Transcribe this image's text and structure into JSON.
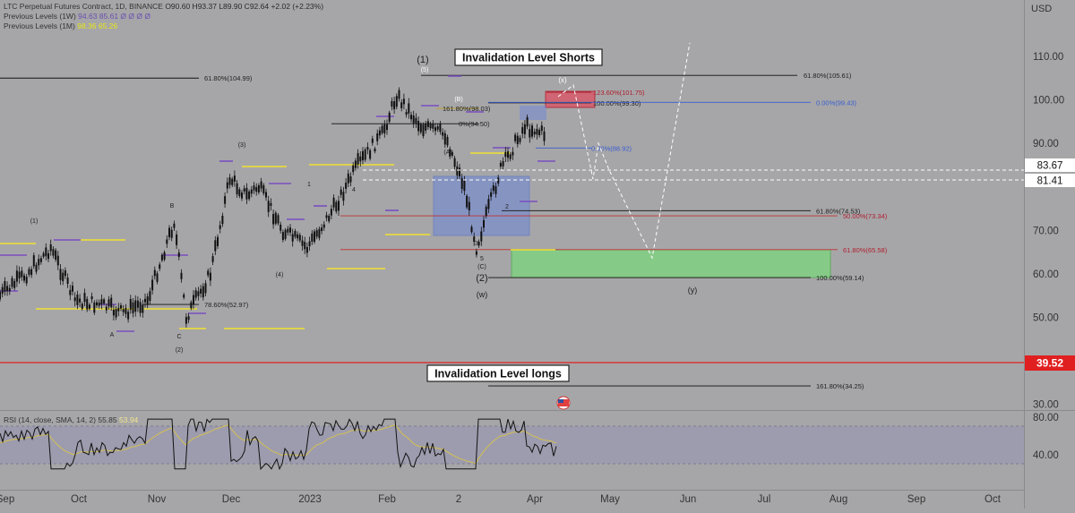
{
  "header": {
    "symbol": "LTC Perpetual Futures Contract, 1D, BINANCE",
    "ohlc": "O90.60 H93.37 L89.90 C92.64 +2.02 (+2.23%)",
    "prev_1w_label": "Previous Levels (1W)",
    "prev_1w_values": "94.63 85.61 Ø Ø Ø Ø",
    "prev_1m_label": "Previous Levels (1M)",
    "prev_1m_values": "98.36 65.26",
    "currency": "USD"
  },
  "annotations": {
    "shorts_box": "Invalidation Level Shorts",
    "longs_box": "Invalidation Level longs"
  },
  "price_axis": {
    "ticks": [
      "110.00",
      "100.00",
      "90.00",
      "70.00",
      "60.00",
      "50.00",
      "30.00"
    ],
    "marker_83": "83.67",
    "marker_81": "81.41",
    "marker_39": "39.52"
  },
  "rsi": {
    "legend_label": "RSI (14, close, SMA, 14, 2)",
    "legend_value": "55.85",
    "legend_sma": "53.94",
    "ticks": [
      "80.00",
      "40.00"
    ]
  },
  "time_axis": {
    "labels": [
      "Sep",
      "Oct",
      "Nov",
      "Dec",
      "2023",
      "Feb",
      "2",
      "Apr",
      "May",
      "Jun",
      "Jul",
      "Aug",
      "Sep",
      "Oct"
    ]
  },
  "chart_data": {
    "type": "line",
    "y_axis_range": [
      26,
      118
    ],
    "fib_levels": [
      {
        "label": "61.80%(104.99)",
        "price": 104.99
      },
      {
        "label": "61.80%(105.61)",
        "price": 105.61
      },
      {
        "label": "123.60%(101.75)",
        "price": 101.75
      },
      {
        "label": "100.00%(99.30)",
        "price": 99.3
      },
      {
        "label": "0.00%(99.43)",
        "price": 99.43
      },
      {
        "label": "161.80%(98.03)",
        "price": 98.03
      },
      {
        "label": "0%(94.50)",
        "price": 94.5
      },
      {
        "label": "0.00%(88.92)",
        "price": 88.92
      },
      {
        "label": "61.80%(74.53)",
        "price": 74.53
      },
      {
        "label": "50.00%(73.34)",
        "price": 73.34
      },
      {
        "label": "61.80%(65.58)",
        "price": 65.58
      },
      {
        "label": "100.00%(59.14)",
        "price": 59.14
      },
      {
        "label": "78.60%(52.97)",
        "price": 52.97
      },
      {
        "label": "161.80%(34.25)",
        "price": 34.25
      }
    ],
    "wave_labels": [
      "(1)",
      "(5)",
      "(2)",
      "(w)",
      "(y)",
      "(x)",
      "(C)",
      "(B)",
      "(A)",
      "(4)",
      "(3)",
      "(1)",
      "(2)",
      "5",
      "4",
      "3",
      "2",
      "1",
      "A",
      "B",
      "C"
    ],
    "price_path": [
      {
        "date": "2022-08-25",
        "price": 55
      },
      {
        "date": "2022-09-05",
        "price": 60
      },
      {
        "date": "2022-09-15",
        "price": 66
      },
      {
        "date": "2022-09-25",
        "price": 54
      },
      {
        "date": "2022-10-05",
        "price": 53
      },
      {
        "date": "2022-10-15",
        "price": 51
      },
      {
        "date": "2022-10-25",
        "price": 54
      },
      {
        "date": "2022-11-05",
        "price": 72
      },
      {
        "date": "2022-11-10",
        "price": 50
      },
      {
        "date": "2022-11-20",
        "price": 60
      },
      {
        "date": "2022-11-28",
        "price": 82
      },
      {
        "date": "2022-12-05",
        "price": 78
      },
      {
        "date": "2022-12-10",
        "price": 80
      },
      {
        "date": "2022-12-20",
        "price": 70
      },
      {
        "date": "2022-12-30",
        "price": 66
      },
      {
        "date": "2023-01-10",
        "price": 75
      },
      {
        "date": "2023-01-20",
        "price": 85
      },
      {
        "date": "2023-01-30",
        "price": 92
      },
      {
        "date": "2023-02-05",
        "price": 101
      },
      {
        "date": "2023-02-15",
        "price": 94
      },
      {
        "date": "2023-02-25",
        "price": 92
      },
      {
        "date": "2023-03-05",
        "price": 80
      },
      {
        "date": "2023-03-10",
        "price": 66
      },
      {
        "date": "2023-03-20",
        "price": 84
      },
      {
        "date": "2023-03-30",
        "price": 94
      },
      {
        "date": "2023-04-08",
        "price": 92
      }
    ]
  }
}
